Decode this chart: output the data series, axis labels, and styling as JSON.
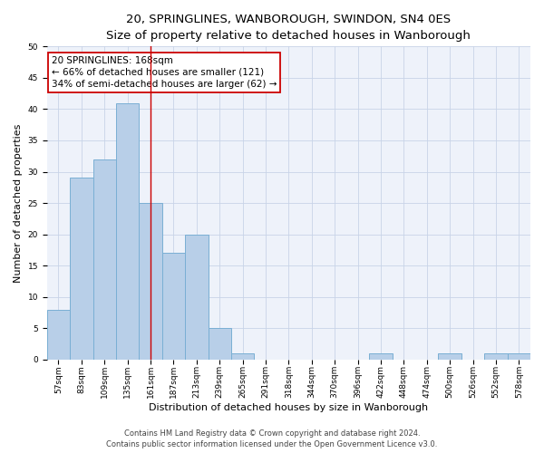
{
  "title_line1": "20, SPRINGLINES, WANBOROUGH, SWINDON, SN4 0ES",
  "title_line2": "Size of property relative to detached houses in Wanborough",
  "xlabel": "Distribution of detached houses by size in Wanborough",
  "ylabel": "Number of detached properties",
  "categories": [
    "57sqm",
    "83sqm",
    "109sqm",
    "135sqm",
    "161sqm",
    "187sqm",
    "213sqm",
    "239sqm",
    "265sqm",
    "291sqm",
    "318sqm",
    "344sqm",
    "370sqm",
    "396sqm",
    "422sqm",
    "448sqm",
    "474sqm",
    "500sqm",
    "526sqm",
    "552sqm",
    "578sqm"
  ],
  "values": [
    8,
    29,
    32,
    41,
    25,
    17,
    20,
    5,
    1,
    0,
    0,
    0,
    0,
    0,
    1,
    0,
    0,
    1,
    0,
    1,
    1
  ],
  "bar_color": "#b8cfe8",
  "bar_edgecolor": "#7aafd4",
  "property_bin_index": 4,
  "vline_color": "#cc0000",
  "annotation_box_color": "#cc0000",
  "annotation_text_line1": "20 SPRINGLINES: 168sqm",
  "annotation_text_line2": "← 66% of detached houses are smaller (121)",
  "annotation_text_line3": "34% of semi-detached houses are larger (62) →",
  "ylim": [
    0,
    50
  ],
  "yticks": [
    0,
    5,
    10,
    15,
    20,
    25,
    30,
    35,
    40,
    45,
    50
  ],
  "grid_color": "#c8d4e8",
  "background_color": "#eef2fa",
  "footer_line1": "Contains HM Land Registry data © Crown copyright and database right 2024.",
  "footer_line2": "Contains public sector information licensed under the Open Government Licence v3.0.",
  "title_fontsize": 9.5,
  "subtitle_fontsize": 8.5,
  "ylabel_fontsize": 8,
  "xlabel_fontsize": 8,
  "tick_fontsize": 6.5,
  "annotation_fontsize": 7.5,
  "footer_fontsize": 6.0
}
